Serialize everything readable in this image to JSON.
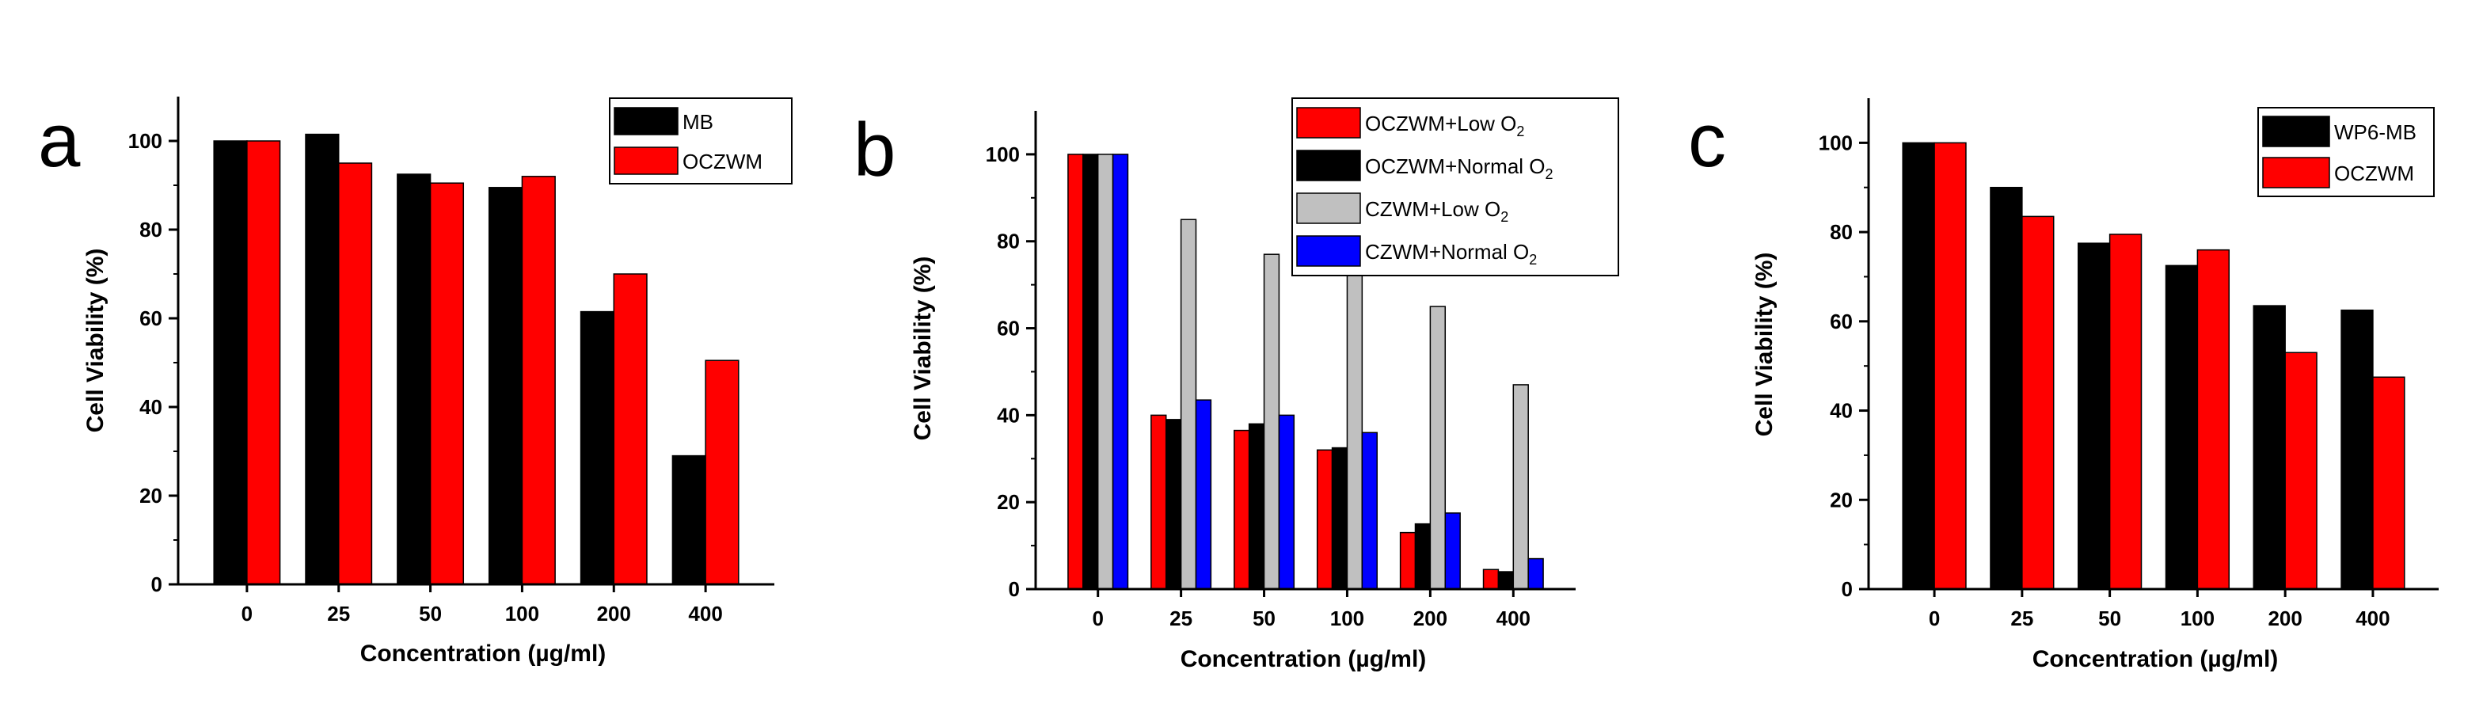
{
  "chart_data": [
    {
      "type": "bar",
      "panel": "a",
      "xlabel": "Concentration (µg/ml)",
      "ylabel": "Cell Viability (%)",
      "ylim": [
        0,
        110
      ],
      "yticks": [
        0,
        20,
        40,
        60,
        80,
        100
      ],
      "categories": [
        "0",
        "25",
        "50",
        "100",
        "200",
        "400"
      ],
      "legend_position": "top-right",
      "series": [
        {
          "name": "MB",
          "color": "#000000",
          "values": [
            100,
            101.5,
            92.5,
            89.5,
            61.5,
            29
          ]
        },
        {
          "name": "OCZWM",
          "color": "#ff0000",
          "values": [
            100,
            95,
            90.5,
            92,
            70,
            50.5
          ]
        }
      ]
    },
    {
      "type": "bar",
      "panel": "b",
      "xlabel": "Concentration (µg/ml)",
      "ylabel": "Cell Viability (%)",
      "ylim": [
        0,
        110
      ],
      "yticks": [
        0,
        20,
        40,
        60,
        80,
        100
      ],
      "categories": [
        "0",
        "25",
        "50",
        "100",
        "200",
        "400"
      ],
      "legend_position": "top-right",
      "series": [
        {
          "name": "OCZWM+Low O",
          "name_sub": "2",
          "color": "#ff0000",
          "values": [
            100,
            40,
            36.5,
            32,
            13,
            4.5
          ]
        },
        {
          "name": "OCZWM+Normal O",
          "name_sub": "2",
          "color": "#000000",
          "values": [
            100,
            39,
            38,
            32.5,
            15,
            4
          ]
        },
        {
          "name": "CZWM+Low O",
          "name_sub": "2",
          "color": "#c0c0c0",
          "values": [
            100,
            85,
            77,
            75,
            65,
            47
          ]
        },
        {
          "name": "CZWM+Normal O",
          "name_sub": "2",
          "color": "#0000ff",
          "values": [
            100,
            43.5,
            40,
            36,
            17.5,
            7
          ]
        }
      ]
    },
    {
      "type": "bar",
      "panel": "c",
      "xlabel": "Concentration (µg/ml)",
      "ylabel": "Cell Viability (%)",
      "ylim": [
        0,
        110
      ],
      "yticks": [
        0,
        20,
        40,
        60,
        80,
        100
      ],
      "categories": [
        "0",
        "25",
        "50",
        "100",
        "200",
        "400"
      ],
      "legend_position": "top-right",
      "series": [
        {
          "name": "WP6-MB",
          "color": "#000000",
          "values": [
            100,
            90,
            77.5,
            72.5,
            63.5,
            62.5
          ]
        },
        {
          "name": "OCZWM",
          "color": "#ff0000",
          "values": [
            100,
            83.5,
            79.5,
            76,
            53,
            47.5
          ]
        }
      ]
    }
  ]
}
